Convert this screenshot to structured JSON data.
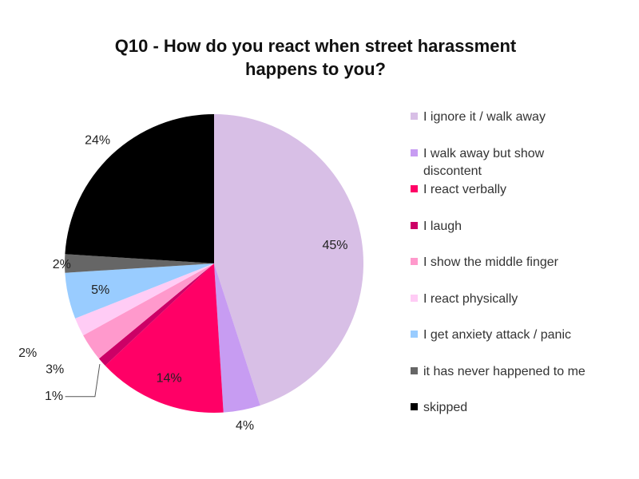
{
  "chart_data": {
    "type": "pie",
    "title": [
      "Q10 - How do you react when street harassment",
      "happens to you?"
    ],
    "categories": [
      "I ignore it / walk away",
      "I walk away but show discontent",
      "I react verbally",
      "I laugh",
      "I show the middle finger",
      "I react physically",
      "I get anxiety attack / panic",
      "it has never happened to me",
      "skipped"
    ],
    "legend_labels": [
      [
        "I ignore it / walk away"
      ],
      [
        "I walk away but show",
        "discontent"
      ],
      [
        "I react verbally"
      ],
      [
        "I laugh"
      ],
      [
        "I show the middle finger"
      ],
      [
        "I react physically"
      ],
      [
        "I get anxiety attack / panic"
      ],
      [
        "it has never happened to me"
      ],
      [
        "skipped"
      ]
    ],
    "values": [
      45,
      4,
      14,
      1,
      3,
      2,
      5,
      2,
      24
    ],
    "data_labels": [
      "45%",
      "4%",
      "14%",
      "1%",
      "3%",
      "2%",
      "5%",
      "2%",
      "24%"
    ],
    "colors": [
      "#d8bfe6",
      "#c79cf2",
      "#ff0066",
      "#cc0066",
      "#ff99cc",
      "#ffccf5",
      "#99ccff",
      "#666666",
      "#000000"
    ],
    "legend_placement": "right"
  }
}
